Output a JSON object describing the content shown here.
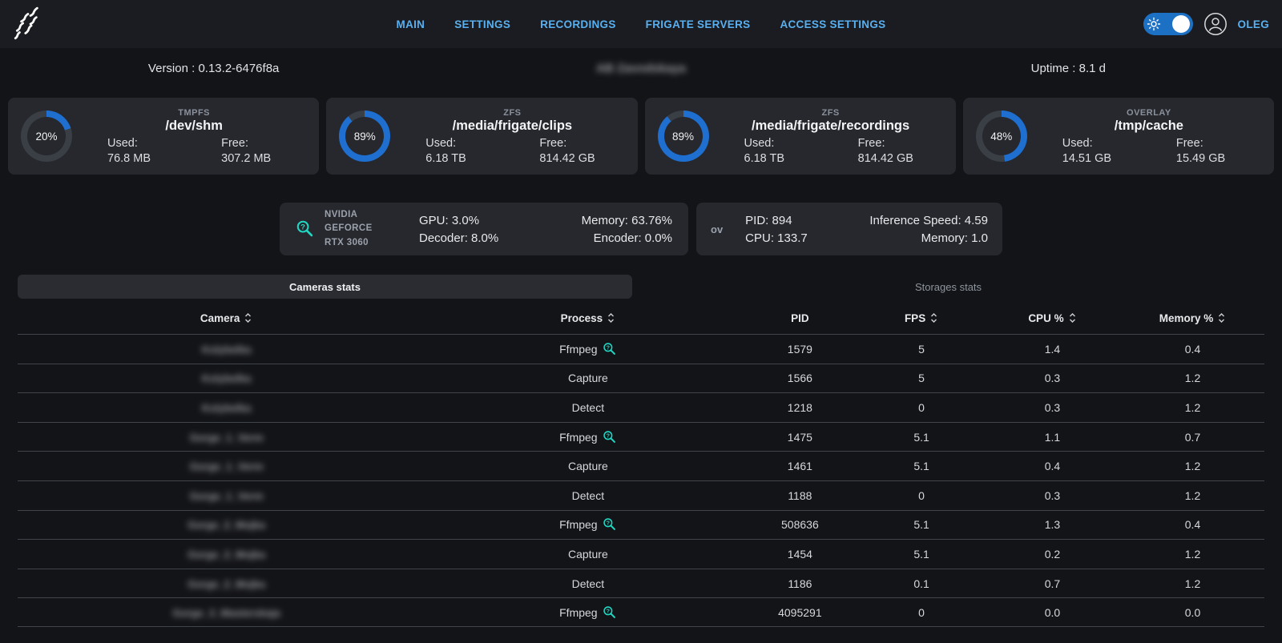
{
  "nav": {
    "items": [
      {
        "label": "MAIN"
      },
      {
        "label": "SETTINGS"
      },
      {
        "label": "RECORDINGS"
      },
      {
        "label": "FRIGATE SERVERS"
      },
      {
        "label": "ACCESS SETTINGS"
      }
    ],
    "user": "OLEG"
  },
  "info_bar": {
    "version": "Version : 0.13.2-6476f8a",
    "site_title_blurred": "AB Zavodskaya",
    "uptime": "Uptime : 8.1 d"
  },
  "storage_cards": [
    {
      "fs_type": "TMPFS",
      "mount": "/dev/shm",
      "percent": 20,
      "percent_label": "20%",
      "used_label": "Used:",
      "used": "76.8 MB",
      "free_label": "Free:",
      "free": "307.2 MB"
    },
    {
      "fs_type": "ZFS",
      "mount": "/media/frigate/clips",
      "percent": 89,
      "percent_label": "89%",
      "used_label": "Used:",
      "used": "6.18 TB",
      "free_label": "Free:",
      "free": "814.42 GB"
    },
    {
      "fs_type": "ZFS",
      "mount": "/media/frigate/recordings",
      "percent": 89,
      "percent_label": "89%",
      "used_label": "Used:",
      "used": "6.18 TB",
      "free_label": "Free:",
      "free": "814.42 GB"
    },
    {
      "fs_type": "OVERLAY",
      "mount": "/tmp/cache",
      "percent": 48,
      "percent_label": "48%",
      "used_label": "Used:",
      "used": "14.51 GB",
      "free_label": "Free:",
      "free": "15.49 GB"
    }
  ],
  "gpu_card": {
    "name_line1": "NVIDIA GEFORCE",
    "name_line2": "RTX 3060",
    "gpu": "GPU: 3.0%",
    "decoder": "Decoder: 8.0%",
    "memory": "Memory: 63.76%",
    "encoder": "Encoder: 0.0%"
  },
  "detector_card": {
    "name": "ov",
    "pid": "PID: 894",
    "cpu": "CPU: 133.7",
    "inference": "Inference Speed: 4.59",
    "memory": "Memory: 1.0"
  },
  "tabs": {
    "cameras": "Cameras stats",
    "storages": "Storages stats"
  },
  "table": {
    "headers": {
      "camera": "Camera",
      "process": "Process",
      "pid": "PID",
      "fps": "FPS",
      "cpu": "CPU %",
      "memory": "Memory %"
    },
    "rows": [
      {
        "camera_blurred": "Kolybelka",
        "process": "Ffmpeg",
        "pid": "1579",
        "fps": "5",
        "cpu": "1.4",
        "memory": "0.4"
      },
      {
        "camera_blurred": "Kolybelka",
        "process": "Capture",
        "pid": "1566",
        "fps": "5",
        "cpu": "0.3",
        "memory": "1.2"
      },
      {
        "camera_blurred": "Kolybelka",
        "process": "Detect",
        "pid": "1218",
        "fps": "0",
        "cpu": "0.3",
        "memory": "1.2"
      },
      {
        "camera_blurred": "Gorge_1_Verm",
        "process": "Ffmpeg",
        "pid": "1475",
        "fps": "5.1",
        "cpu": "1.1",
        "memory": "0.7"
      },
      {
        "camera_blurred": "Gorge_1_Verm",
        "process": "Capture",
        "pid": "1461",
        "fps": "5.1",
        "cpu": "0.4",
        "memory": "1.2"
      },
      {
        "camera_blurred": "Gorge_1_Verm",
        "process": "Detect",
        "pid": "1188",
        "fps": "0",
        "cpu": "0.3",
        "memory": "1.2"
      },
      {
        "camera_blurred": "Gorge_2_Mojka",
        "process": "Ffmpeg",
        "pid": "508636",
        "fps": "5.1",
        "cpu": "1.3",
        "memory": "0.4"
      },
      {
        "camera_blurred": "Gorge_2_Mojka",
        "process": "Capture",
        "pid": "1454",
        "fps": "5.1",
        "cpu": "0.2",
        "memory": "1.2"
      },
      {
        "camera_blurred": "Gorge_2_Mojka",
        "process": "Detect",
        "pid": "1186",
        "fps": "0.1",
        "cpu": "0.7",
        "memory": "1.2"
      },
      {
        "camera_blurred": "Gorge_3_Masterskaja",
        "process": "Ffmpeg",
        "pid": "4095291",
        "fps": "0",
        "cpu": "0.0",
        "memory": "0.0"
      }
    ]
  },
  "colors": {
    "accent_blue": "#58b0f0",
    "toggle_blue": "#1d71c4",
    "donut_blue": "#1e6fd0",
    "donut_track": "#3a3e45",
    "cyan": "#1fd9c5",
    "card_bg": "#26282e"
  }
}
